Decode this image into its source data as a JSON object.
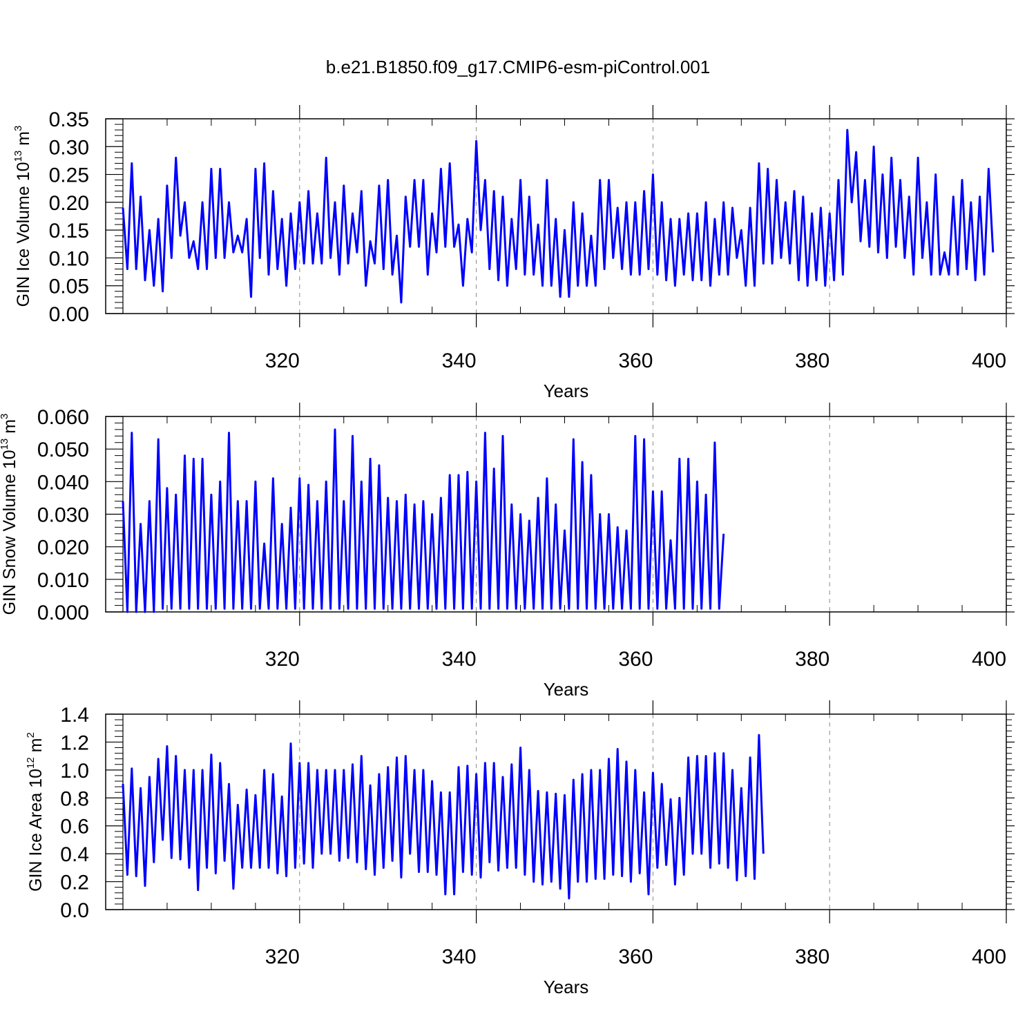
{
  "title": "b.e21.B1850.f09_g17.CMIP6-esm-piControl.001",
  "colors": {
    "series": "#0000ff",
    "axes": "#000000",
    "grid": "#888888"
  },
  "chart_data": [
    {
      "type": "line",
      "title": "",
      "xlabel": "Years",
      "ylabel_prefix": "GIN Ice Volume 10",
      "ylabel_exp": "13",
      "ylabel_suffix": " m",
      "ylabel_unit_exp": "3",
      "xlim": [
        300,
        400
      ],
      "ylim": [
        0,
        0.35
      ],
      "x_ticks": [
        320,
        340,
        360,
        380,
        400
      ],
      "x_tick_labels": [
        "320",
        "340",
        "360",
        "380",
        "400"
      ],
      "y_ticks": [
        0,
        0.05,
        0.1,
        0.15,
        0.2,
        0.25,
        0.3,
        0.35
      ],
      "y_tick_labels": [
        "0.00",
        "0.05",
        "0.10",
        "0.15",
        "0.20",
        "0.25",
        "0.30",
        "0.35"
      ],
      "grid": "vertical dashed at x ticks",
      "series": [
        {
          "name": "GIN Ice Volume",
          "x_start": 300.0,
          "x_step": 0.5,
          "values": [
            0.19,
            0.08,
            0.27,
            0.08,
            0.21,
            0.06,
            0.15,
            0.05,
            0.17,
            0.04,
            0.23,
            0.1,
            0.28,
            0.14,
            0.2,
            0.1,
            0.13,
            0.08,
            0.2,
            0.08,
            0.26,
            0.1,
            0.26,
            0.1,
            0.2,
            0.11,
            0.14,
            0.11,
            0.17,
            0.03,
            0.26,
            0.1,
            0.27,
            0.07,
            0.22,
            0.08,
            0.17,
            0.05,
            0.18,
            0.08,
            0.2,
            0.09,
            0.22,
            0.09,
            0.18,
            0.09,
            0.28,
            0.1,
            0.2,
            0.07,
            0.23,
            0.09,
            0.18,
            0.11,
            0.22,
            0.05,
            0.13,
            0.09,
            0.23,
            0.08,
            0.24,
            0.07,
            0.14,
            0.02,
            0.21,
            0.12,
            0.24,
            0.12,
            0.24,
            0.07,
            0.18,
            0.11,
            0.26,
            0.12,
            0.27,
            0.12,
            0.16,
            0.05,
            0.17,
            0.11,
            0.31,
            0.15,
            0.24,
            0.08,
            0.22,
            0.06,
            0.21,
            0.05,
            0.17,
            0.08,
            0.24,
            0.07,
            0.21,
            0.07,
            0.16,
            0.05,
            0.24,
            0.05,
            0.17,
            0.03,
            0.15,
            0.03,
            0.2,
            0.05,
            0.18,
            0.05,
            0.14,
            0.05,
            0.24,
            0.08,
            0.24,
            0.1,
            0.19,
            0.08,
            0.2,
            0.07,
            0.2,
            0.07,
            0.22,
            0.08,
            0.25,
            0.07,
            0.2,
            0.06,
            0.17,
            0.05,
            0.17,
            0.07,
            0.18,
            0.06,
            0.18,
            0.06,
            0.2,
            0.05,
            0.17,
            0.07,
            0.2,
            0.07,
            0.19,
            0.1,
            0.15,
            0.05,
            0.19,
            0.05,
            0.27,
            0.09,
            0.26,
            0.09,
            0.24,
            0.1,
            0.2,
            0.09,
            0.22,
            0.06,
            0.21,
            0.05,
            0.18,
            0.06,
            0.19,
            0.05,
            0.18,
            0.06,
            0.24,
            0.07,
            0.33,
            0.2,
            0.29,
            0.13,
            0.24,
            0.12,
            0.3,
            0.11,
            0.25,
            0.1,
            0.28,
            0.12,
            0.24,
            0.1,
            0.21,
            0.07,
            0.28,
            0.1,
            0.2,
            0.07,
            0.25,
            0.07,
            0.11,
            0.07,
            0.21,
            0.07,
            0.24,
            0.08,
            0.2,
            0.06,
            0.21,
            0.07,
            0.26,
            0.11
          ]
        }
      ]
    },
    {
      "type": "line",
      "title": "",
      "xlabel": "Years",
      "ylabel_prefix": "GIN Snow Volume 10",
      "ylabel_exp": "13",
      "ylabel_suffix": " m",
      "ylabel_unit_exp": "3",
      "xlim": [
        300,
        400
      ],
      "ylim": [
        0,
        0.06
      ],
      "x_ticks": [
        320,
        340,
        360,
        380,
        400
      ],
      "x_tick_labels": [
        "320",
        "340",
        "360",
        "380",
        "400"
      ],
      "y_ticks": [
        0,
        0.01,
        0.02,
        0.03,
        0.04,
        0.05,
        0.06
      ],
      "y_tick_labels": [
        "0.000",
        "0.010",
        "0.020",
        "0.030",
        "0.040",
        "0.050",
        "0.060"
      ],
      "grid": "vertical dashed at x ticks",
      "series": [
        {
          "name": "GIN Snow Volume",
          "x_start": 300.0,
          "x_step": 0.5,
          "values": [
            0.034,
            0.0,
            0.055,
            0.0,
            0.027,
            0.0,
            0.034,
            0.0,
            0.053,
            0.001,
            0.038,
            0.001,
            0.036,
            0.001,
            0.048,
            0.001,
            0.047,
            0.001,
            0.047,
            0.001,
            0.036,
            0.001,
            0.04,
            0.001,
            0.055,
            0.001,
            0.034,
            0.001,
            0.034,
            0.001,
            0.04,
            0.001,
            0.021,
            0.001,
            0.041,
            0.001,
            0.027,
            0.001,
            0.032,
            0.001,
            0.041,
            0.001,
            0.039,
            0.001,
            0.034,
            0.001,
            0.04,
            0.001,
            0.056,
            0.001,
            0.034,
            0.001,
            0.054,
            0.001,
            0.04,
            0.001,
            0.047,
            0.001,
            0.045,
            0.001,
            0.035,
            0.001,
            0.034,
            0.001,
            0.036,
            0.001,
            0.033,
            0.001,
            0.034,
            0.001,
            0.03,
            0.001,
            0.035,
            0.001,
            0.042,
            0.001,
            0.042,
            0.001,
            0.043,
            0.001,
            0.04,
            0.001,
            0.055,
            0.001,
            0.044,
            0.001,
            0.054,
            0.001,
            0.033,
            0.001,
            0.03,
            0.001,
            0.028,
            0.001,
            0.035,
            0.001,
            0.041,
            0.001,
            0.033,
            0.001,
            0.025,
            0.001,
            0.053,
            0.001,
            0.046,
            0.001,
            0.042,
            0.001,
            0.03,
            0.001,
            0.03,
            0.001,
            0.026,
            0.001,
            0.025,
            0.001,
            0.054,
            0.001,
            0.053,
            0.001,
            0.037,
            0.001,
            0.037,
            0.001,
            0.022,
            0.001,
            0.047,
            0.001,
            0.047,
            0.001,
            0.04,
            0.001,
            0.036,
            0.001,
            0.052,
            0.001,
            0.024
          ]
        }
      ]
    },
    {
      "type": "line",
      "title": "",
      "xlabel": "Years",
      "ylabel_prefix": "GIN Ice Area 10",
      "ylabel_exp": "12",
      "ylabel_suffix": " m",
      "ylabel_unit_exp": "2",
      "xlim": [
        300,
        400
      ],
      "ylim": [
        0,
        1.4
      ],
      "x_ticks": [
        320,
        340,
        360,
        380,
        400
      ],
      "x_tick_labels": [
        "320",
        "340",
        "360",
        "380",
        "400"
      ],
      "y_ticks": [
        0,
        0.2,
        0.4,
        0.6,
        0.8,
        1.0,
        1.2,
        1.4
      ],
      "y_tick_labels": [
        "0.0",
        "0.2",
        "0.4",
        "0.6",
        "0.8",
        "1.0",
        "1.2",
        "1.4"
      ],
      "grid": "vertical dashed at x ticks",
      "series": [
        {
          "name": "GIN Ice Area",
          "x_start": 300.0,
          "x_step": 0.5,
          "values": [
            0.9,
            0.25,
            1.01,
            0.24,
            0.87,
            0.17,
            0.95,
            0.34,
            1.08,
            0.5,
            1.17,
            0.37,
            1.1,
            0.36,
            1.0,
            0.3,
            1.0,
            0.14,
            1.0,
            0.3,
            1.11,
            0.26,
            1.05,
            0.35,
            0.9,
            0.15,
            0.75,
            0.3,
            0.86,
            0.3,
            0.82,
            0.3,
            1.0,
            0.3,
            0.97,
            0.26,
            0.81,
            0.24,
            1.19,
            0.3,
            1.05,
            0.33,
            1.05,
            0.3,
            1.0,
            0.4,
            1.0,
            0.4,
            1.0,
            0.35,
            1.0,
            0.37,
            1.04,
            0.34,
            1.1,
            0.29,
            0.89,
            0.25,
            0.97,
            0.3,
            1.02,
            0.35,
            1.09,
            0.23,
            1.1,
            0.4,
            1.0,
            0.27,
            1.0,
            0.27,
            0.92,
            0.25,
            0.84,
            0.11,
            0.84,
            0.11,
            1.02,
            0.27,
            1.03,
            0.25,
            0.97,
            0.23,
            1.05,
            0.34,
            1.05,
            0.28,
            0.95,
            0.3,
            1.04,
            0.3,
            1.16,
            0.25,
            1.0,
            0.2,
            0.85,
            0.18,
            0.84,
            0.2,
            0.83,
            0.15,
            0.82,
            0.08,
            0.93,
            0.2,
            0.97,
            0.2,
            1.0,
            0.22,
            1.0,
            0.22,
            1.08,
            0.25,
            1.15,
            0.24,
            1.06,
            0.2,
            1.0,
            0.26,
            0.84,
            0.11,
            0.98,
            0.3,
            0.9,
            0.32,
            0.79,
            0.18,
            0.8,
            0.25,
            1.09,
            0.4,
            1.1,
            0.4,
            1.1,
            0.3,
            1.12,
            0.33,
            1.12,
            0.3,
            1.0,
            0.21,
            0.87,
            0.24,
            1.09,
            0.22,
            1.25,
            0.4
          ]
        }
      ]
    }
  ]
}
